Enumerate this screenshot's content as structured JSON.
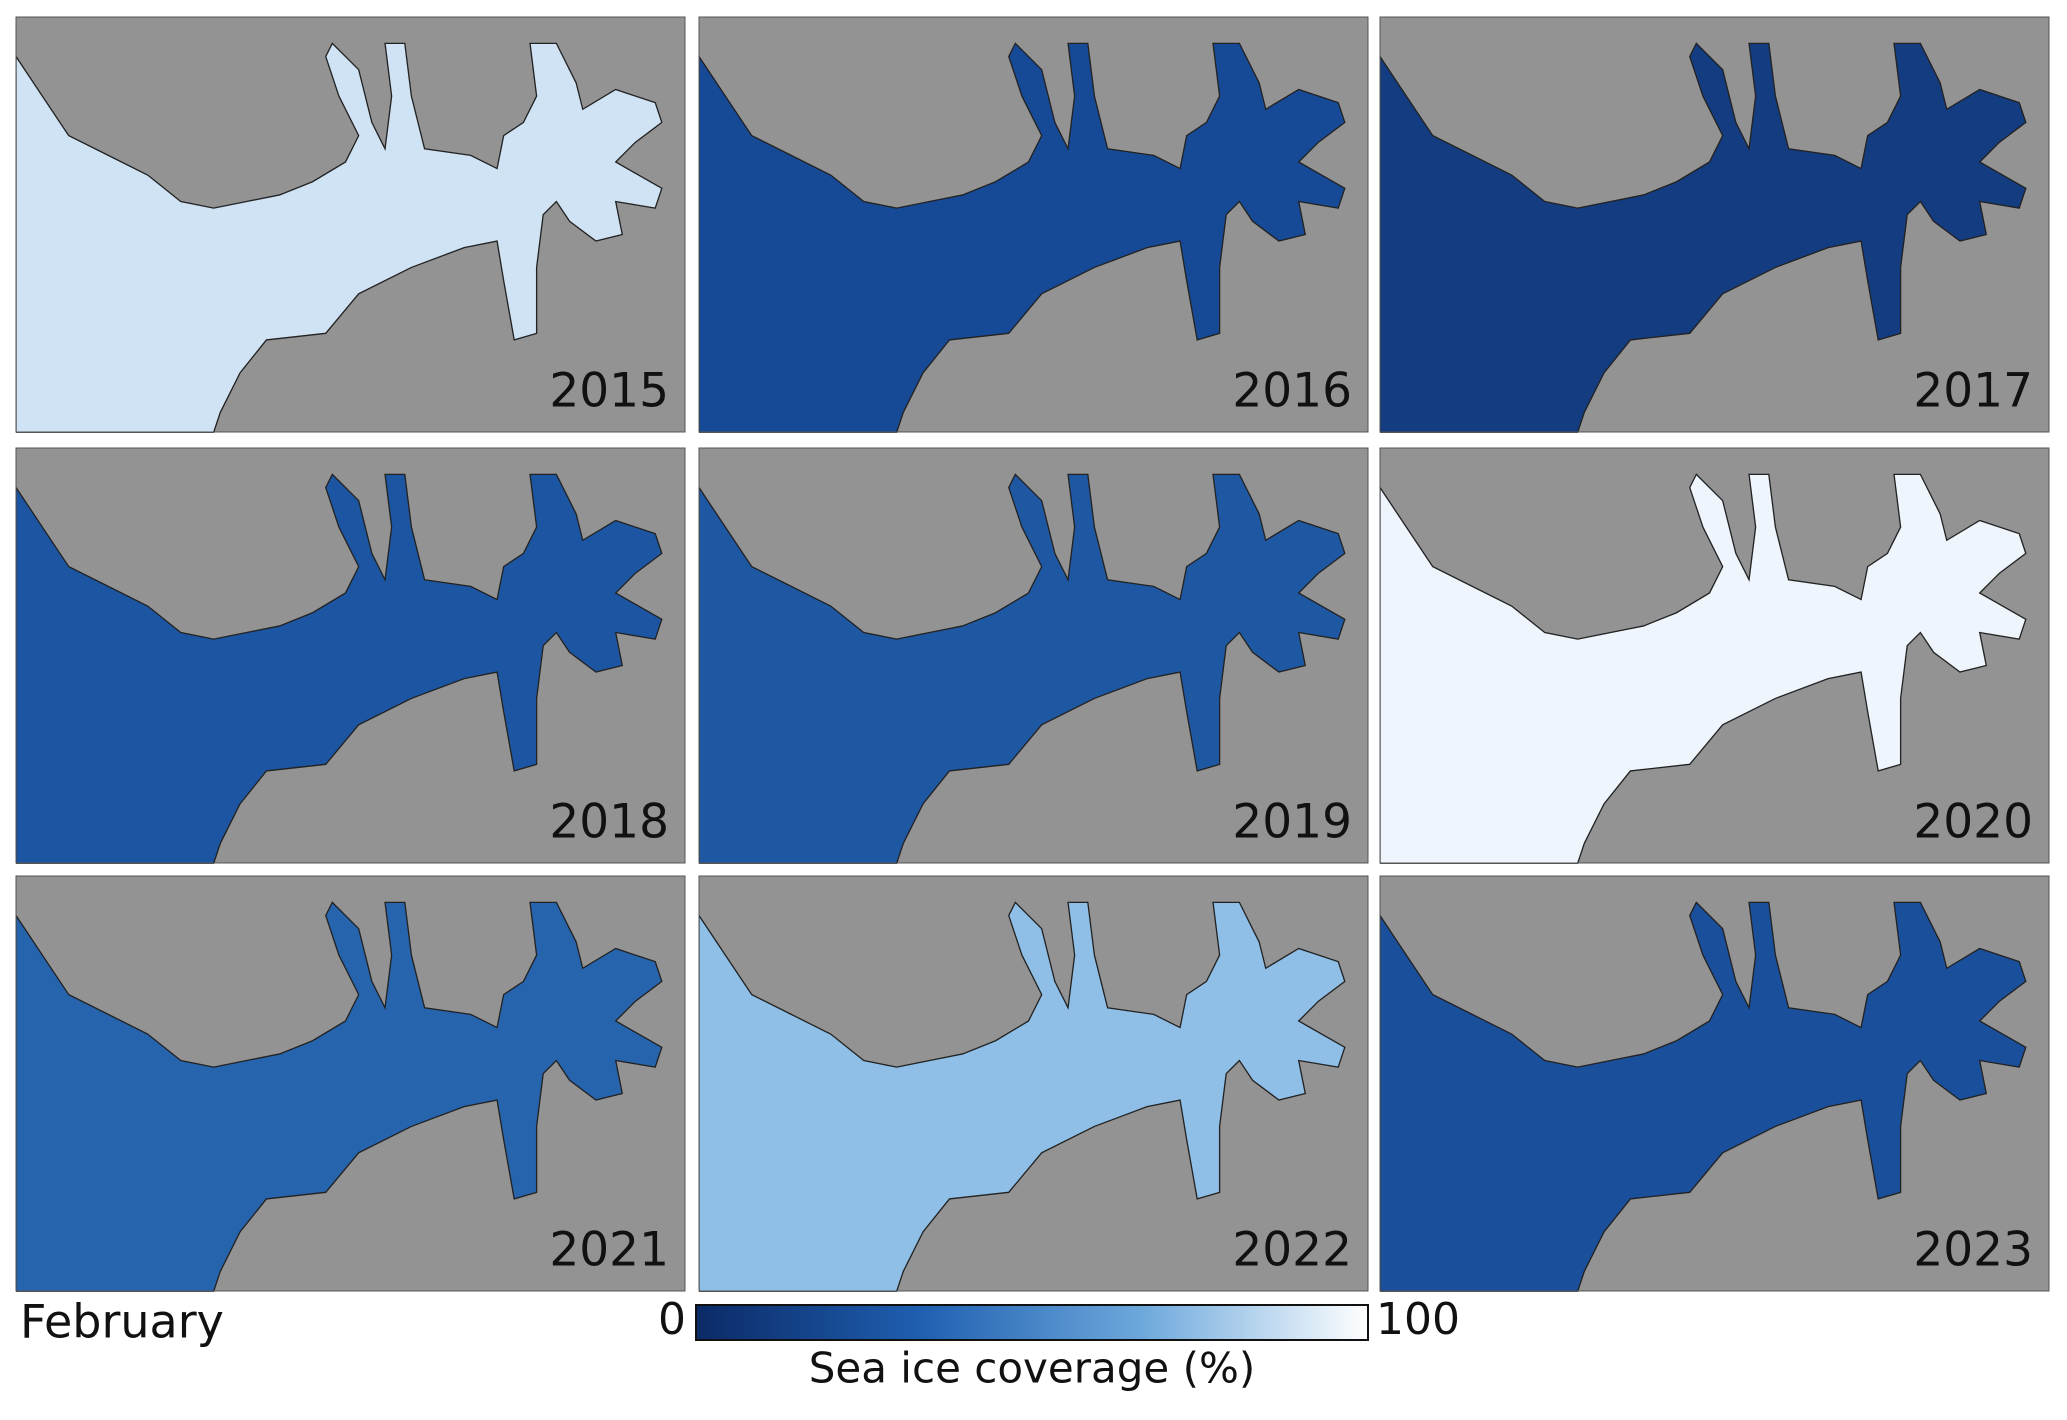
{
  "panels": [
    {
      "label": "2015",
      "color": "#cfe3f4"
    },
    {
      "label": "2016",
      "color": "#174a96"
    },
    {
      "label": "2017",
      "color": "#143c80"
    },
    {
      "label": "2018",
      "color": "#1c56a3"
    },
    {
      "label": "2019",
      "color": "#1f58a2"
    },
    {
      "label": "2020",
      "color": "#eef5fc"
    },
    {
      "label": "2021",
      "color": "#2664ae"
    },
    {
      "label": "2022",
      "color": "#8fbfe6"
    },
    {
      "label": "2023",
      "color": "#1a4f9c"
    }
  ],
  "caption": "February",
  "colorbar": {
    "min": 0,
    "max": 100,
    "title": "Sea ice coverage (%)",
    "colors": [
      "#0b2a66",
      "#1f5fb0",
      "#6ea9dc",
      "#ffffff"
    ]
  }
}
